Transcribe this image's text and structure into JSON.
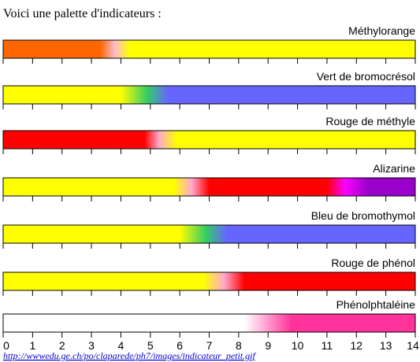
{
  "chart_data": {
    "type": "gradient",
    "title": "Voici une palette d'indicateurs :",
    "xlim": [
      0,
      14
    ],
    "xticks": [
      0,
      1,
      2,
      3,
      4,
      5,
      6,
      7,
      8,
      9,
      10,
      11,
      12,
      13,
      14
    ],
    "source": "http://wwwedu.ge.ch/po/claparede/ph7/images/indicateur_petit.gif",
    "indicators": [
      {
        "name": "Méthylorange",
        "stops": [
          {
            "ph": 0,
            "color": "#ff6600"
          },
          {
            "ph": 3.3,
            "color": "#ff6600"
          },
          {
            "ph": 3.8,
            "color": "#ffbbcc"
          },
          {
            "ph": 4.3,
            "color": "#ffff00"
          },
          {
            "ph": 14,
            "color": "#ffff00"
          }
        ]
      },
      {
        "name": "Vert de bromocrésol",
        "stops": [
          {
            "ph": 0,
            "color": "#ffff00"
          },
          {
            "ph": 4.0,
            "color": "#ffff00"
          },
          {
            "ph": 4.9,
            "color": "#33cc66"
          },
          {
            "ph": 5.6,
            "color": "#6666ff"
          },
          {
            "ph": 14,
            "color": "#6666ff"
          }
        ]
      },
      {
        "name": "Rouge de méthyle",
        "stops": [
          {
            "ph": 0,
            "color": "#ff0000"
          },
          {
            "ph": 4.8,
            "color": "#ff0000"
          },
          {
            "ph": 5.3,
            "color": "#ffaacc"
          },
          {
            "ph": 5.9,
            "color": "#ffff00"
          },
          {
            "ph": 14,
            "color": "#ffff00"
          }
        ]
      },
      {
        "name": "Alizarine",
        "stops": [
          {
            "ph": 0,
            "color": "#ffff00"
          },
          {
            "ph": 5.8,
            "color": "#ffff00"
          },
          {
            "ph": 6.4,
            "color": "#ffaacc"
          },
          {
            "ph": 7.0,
            "color": "#ff0000"
          },
          {
            "ph": 11.0,
            "color": "#ff0000"
          },
          {
            "ph": 11.6,
            "color": "#ff00ff"
          },
          {
            "ph": 12.4,
            "color": "#9900cc"
          },
          {
            "ph": 14,
            "color": "#9900cc"
          }
        ]
      },
      {
        "name": "Bleu de bromothymol",
        "stops": [
          {
            "ph": 0,
            "color": "#ffff00"
          },
          {
            "ph": 6.0,
            "color": "#ffff00"
          },
          {
            "ph": 6.9,
            "color": "#33cc66"
          },
          {
            "ph": 7.6,
            "color": "#6666ff"
          },
          {
            "ph": 14,
            "color": "#6666ff"
          }
        ]
      },
      {
        "name": "Rouge de phénol",
        "stops": [
          {
            "ph": 0,
            "color": "#ffff00"
          },
          {
            "ph": 6.8,
            "color": "#ffff00"
          },
          {
            "ph": 7.5,
            "color": "#ffaacc"
          },
          {
            "ph": 8.2,
            "color": "#ff0000"
          },
          {
            "ph": 14,
            "color": "#ff0000"
          }
        ]
      },
      {
        "name": "Phénolphtaléine",
        "stops": [
          {
            "ph": 0,
            "color": "#ffffff"
          },
          {
            "ph": 8.2,
            "color": "#ffffff"
          },
          {
            "ph": 9.8,
            "color": "#ff3399"
          },
          {
            "ph": 14,
            "color": "#ff3399"
          }
        ]
      }
    ]
  }
}
